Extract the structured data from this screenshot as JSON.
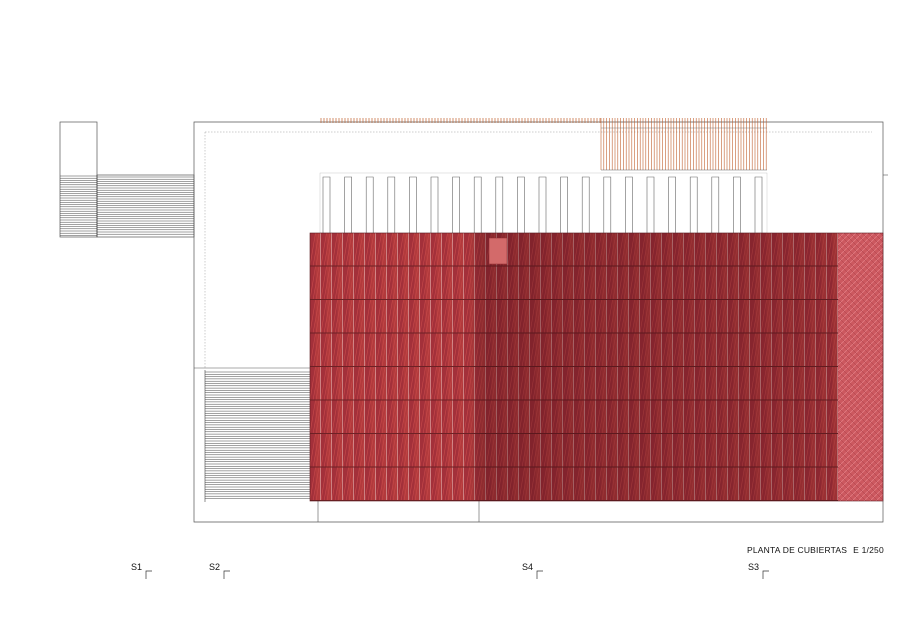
{
  "drawing": {
    "title": "PLANTA DE CUBIERTAS",
    "scale": "E 1/250"
  },
  "section_markers": [
    {
      "label": "S1"
    },
    {
      "label": "S2"
    },
    {
      "label": "S4"
    },
    {
      "label": "S3"
    }
  ],
  "colors": {
    "line": "#444444",
    "tile_red": "#b83a3a",
    "tile_dark": "#7a1f22",
    "tile_light": "#d9585a",
    "hatch_orange": "#c06030"
  }
}
